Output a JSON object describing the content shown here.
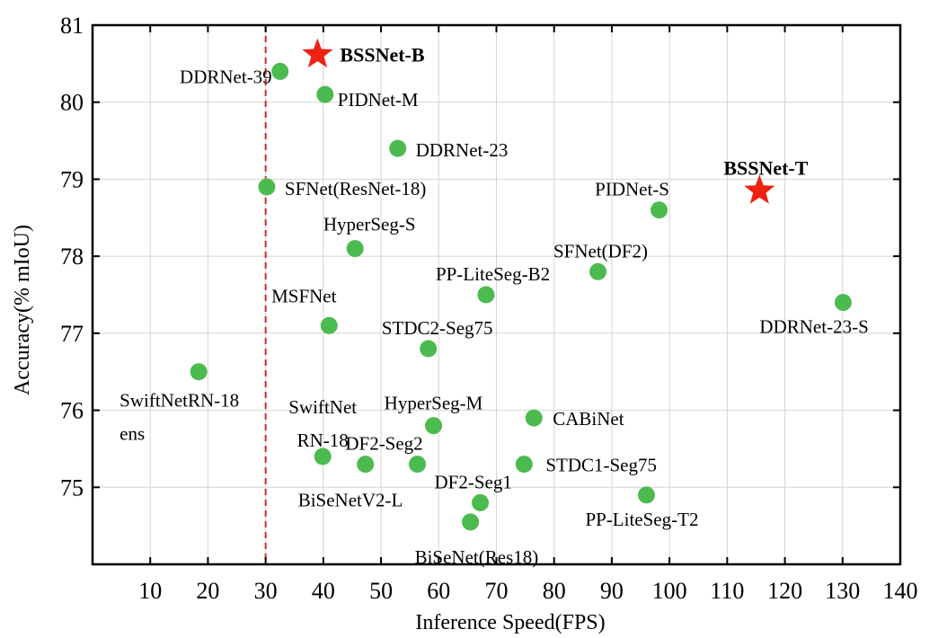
{
  "chart_data": {
    "type": "scatter",
    "title": "",
    "xlabel": "Inference Speed(FPS)",
    "ylabel": "Accuracy(% mIoU)",
    "xlim": [
      0,
      140
    ],
    "ylim": [
      74,
      81
    ],
    "x_ticks": [
      10,
      20,
      30,
      40,
      50,
      60,
      70,
      80,
      90,
      100,
      110,
      120,
      130,
      140
    ],
    "y_ticks": [
      75,
      76,
      77,
      78,
      79,
      80,
      81
    ],
    "grid": true,
    "reference_line": {
      "x": 30,
      "style": "dashed",
      "color": "#d62728"
    },
    "colors": {
      "baseline": "#4cbb4f",
      "ours": "#ee2211"
    },
    "series": [
      {
        "marker": "circle",
        "points": [
          {
            "label": [
              "DDRNet-39"
            ],
            "x": 32.5,
            "y": 80.4
          },
          {
            "label": [
              "PIDNet-M"
            ],
            "x": 40.3,
            "y": 80.1
          },
          {
            "label": [
              "DDRNet-23"
            ],
            "x": 52.9,
            "y": 79.4
          },
          {
            "label": [
              "SFNet(ResNet-18)"
            ],
            "x": 30.2,
            "y": 78.9
          },
          {
            "label": [
              "PIDNet-S"
            ],
            "x": 98.2,
            "y": 78.6
          },
          {
            "label": [
              "HyperSeg-S"
            ],
            "x": 45.5,
            "y": 78.1
          },
          {
            "label": [
              "SFNet(DF2)"
            ],
            "x": 87.6,
            "y": 77.8
          },
          {
            "label": [
              "PP-LiteSeg-B2"
            ],
            "x": 68.2,
            "y": 77.5
          },
          {
            "label": [
              "DDRNet-23-S"
            ],
            "x": 130.1,
            "y": 77.4
          },
          {
            "label": [
              "MSFNet"
            ],
            "x": 41.0,
            "y": 77.1
          },
          {
            "label": [
              "STDC2-Seg75"
            ],
            "x": 58.2,
            "y": 76.8
          },
          {
            "label": [
              "SwiftNetRN-18",
              "ens"
            ],
            "x": 18.4,
            "y": 76.5
          },
          {
            "label": [
              "CABiNet"
            ],
            "x": 76.5,
            "y": 75.9
          },
          {
            "label": [
              "HyperSeg-M"
            ],
            "x": 59.1,
            "y": 75.8
          },
          {
            "label": [
              "SwiftNet",
              "RN-18"
            ],
            "x": 39.9,
            "y": 75.4
          },
          {
            "label": [
              "BiSeNetV2-L"
            ],
            "x": 47.3,
            "y": 75.3
          },
          {
            "label": [
              "DF2-Seg2"
            ],
            "x": 56.3,
            "y": 75.3
          },
          {
            "label": [
              "STDC1-Seg75"
            ],
            "x": 74.8,
            "y": 75.3
          },
          {
            "label": [
              "PP-LiteSeg-T2"
            ],
            "x": 96.0,
            "y": 74.9
          },
          {
            "label": [
              "DF2-Seg1"
            ],
            "x": 67.2,
            "y": 74.8
          },
          {
            "label": [
              "BiSeNet(Res18)"
            ],
            "x": 65.5,
            "y": 74.55
          }
        ]
      },
      {
        "marker": "star",
        "points": [
          {
            "label": [
              "BSSNet-B"
            ],
            "x": 39.0,
            "y": 80.62
          },
          {
            "label": [
              "BSSNet-T"
            ],
            "x": 115.6,
            "y": 78.85
          }
        ]
      }
    ]
  }
}
